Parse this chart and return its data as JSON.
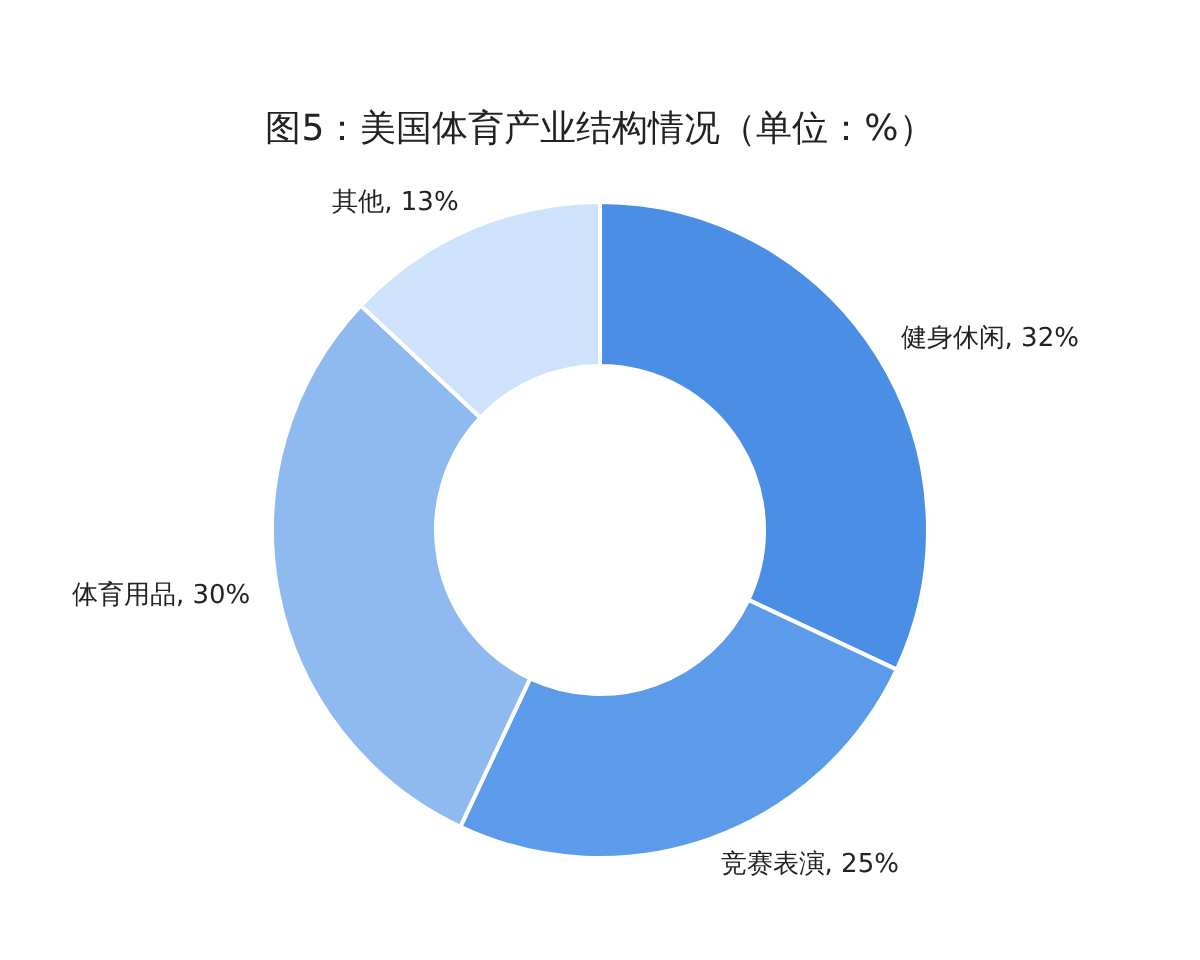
{
  "chart_data": {
    "type": "donut",
    "title": "图5：美国体育产业结构情况（单位：%）",
    "categories": [
      "健身休闲",
      "竞赛表演",
      "体育用品",
      "其他"
    ],
    "values": [
      32,
      25,
      30,
      13
    ],
    "value_labels": [
      "32%",
      "25%",
      "30%",
      "13%"
    ],
    "colors": [
      "#4a8ee6",
      "#5b9bea",
      "#8fbaf0",
      "#cfe2fb"
    ]
  }
}
